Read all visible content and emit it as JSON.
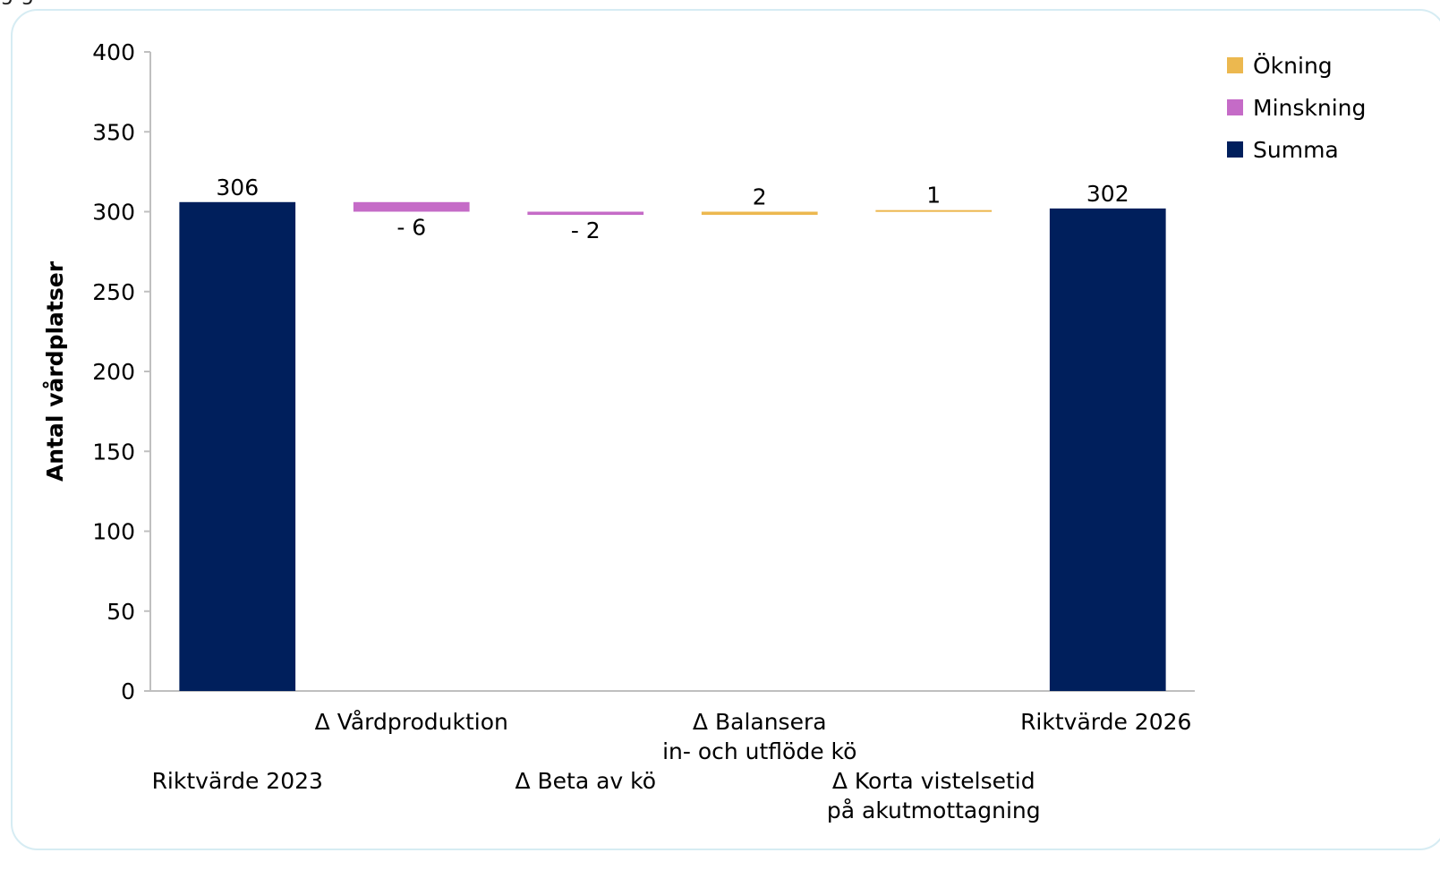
{
  "page": {
    "clipped_heading": "g      g"
  },
  "colors": {
    "increase": "#ecb84f",
    "decrease": "#c56bc7",
    "total": "#001f5c",
    "axis": "#bfbfbf"
  },
  "chart_data": {
    "type": "bar",
    "variant": "waterfall",
    "title": "",
    "ylabel": "Antal vårdplatser",
    "xlabel": "",
    "ylim": [
      0,
      400
    ],
    "yticks": [
      0,
      50,
      100,
      150,
      200,
      250,
      300,
      350,
      400
    ],
    "grid": false,
    "legend_position": "top-right",
    "legend": [
      {
        "label": "Ökning",
        "kind": "increase"
      },
      {
        "label": "Minskning",
        "kind": "decrease"
      },
      {
        "label": "Summa",
        "kind": "total"
      }
    ],
    "categories": [
      [
        "Riktvärde 2023"
      ],
      [
        "Δ Vårdproduktion"
      ],
      [
        "Δ Beta av kö"
      ],
      [
        "Δ Balansera",
        "in- och utflöde kö"
      ],
      [
        "Δ Korta vistelsetid",
        "på akutmottagning"
      ],
      [
        "Riktvärde 2026"
      ]
    ],
    "bars": [
      {
        "kind": "total",
        "value": 306,
        "label": "306"
      },
      {
        "kind": "decrease",
        "value": -6,
        "label": "- 6"
      },
      {
        "kind": "decrease",
        "value": -2,
        "label": "- 2"
      },
      {
        "kind": "increase",
        "value": 2,
        "label": "2"
      },
      {
        "kind": "increase",
        "value": 1,
        "label": "1"
      },
      {
        "kind": "total",
        "value": 302,
        "label": "302"
      }
    ]
  }
}
